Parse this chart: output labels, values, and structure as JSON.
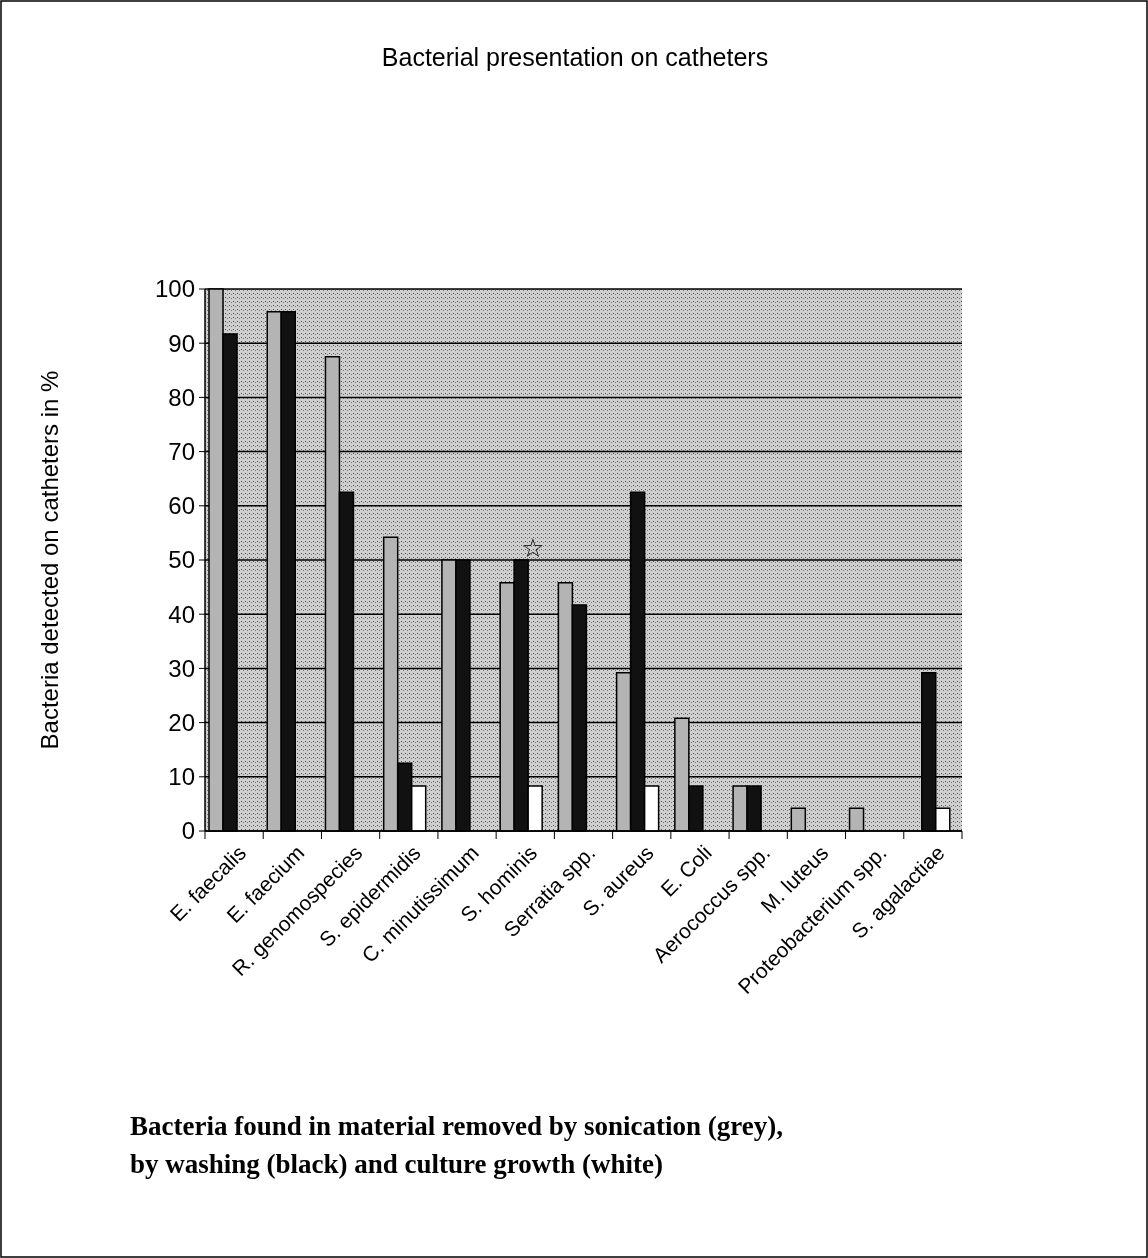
{
  "chart_data": {
    "type": "bar",
    "title": "Bacterial presentation on catheters",
    "ylabel": "Bacteria detected on catheters in %",
    "categories": [
      "E. faecalis",
      "E. faecium",
      "R. genomospecies",
      "S. epidermidis",
      "C. minutissimum",
      "S. hominis",
      "Serratia spp.",
      "S. aureus",
      "E. Coli",
      "Aerococcus spp.",
      "M. luteus",
      "Proteobacterium spp.",
      "S. agalactiae"
    ],
    "series": [
      {
        "color": "#b4b4b4",
        "values": [
          100,
          95.8,
          87.5,
          54.2,
          50,
          45.8,
          45.8,
          29.2,
          20.8,
          8.3,
          4.2,
          4.2,
          0
        ]
      },
      {
        "color": "#111111",
        "values": [
          91.7,
          95.8,
          62.5,
          12.5,
          50,
          50,
          41.7,
          62.5,
          8.3,
          8.3,
          0,
          0,
          29.2
        ]
      },
      {
        "color": "#ffffff",
        "values": [
          0,
          0,
          0,
          8.3,
          0,
          8.3,
          0,
          8.3,
          0,
          0,
          0,
          0,
          4.2
        ]
      }
    ],
    "ylim": [
      0,
      100
    ],
    "yticks": [
      0,
      10,
      20,
      30,
      40,
      50,
      60,
      70,
      80,
      90,
      100
    ],
    "grid": "y",
    "annotations": [
      "☆",
      "Bacteria found in material removed by sonication (grey),\nby washing (black) and culture growth (white)"
    ]
  }
}
